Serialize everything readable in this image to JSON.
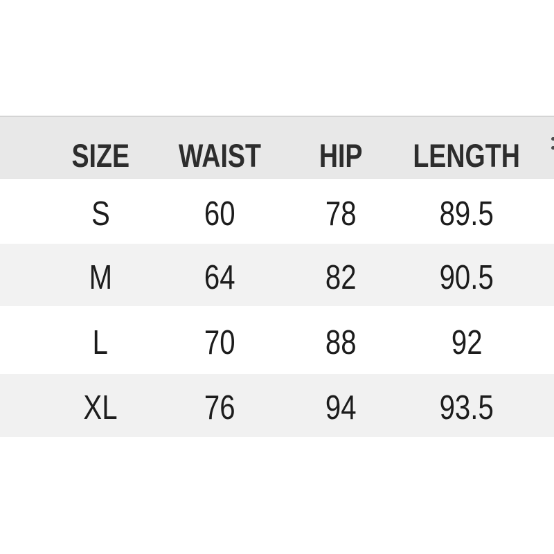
{
  "chart_data": {
    "type": "table",
    "title": "",
    "columns": [
      "SIZE",
      "WAIST",
      "HIP",
      "LENGTH"
    ],
    "rows": [
      [
        "S",
        "60",
        "78",
        "89.5"
      ],
      [
        "M",
        "64",
        "82",
        "90.5"
      ],
      [
        "L",
        "70",
        "88",
        "92"
      ],
      [
        "XL",
        "76",
        "94",
        "93.5"
      ]
    ],
    "layout": {
      "header_bg": "#e8e8e8",
      "row_alt_bg": "#f2f2f2",
      "row_bg": "#ffffff",
      "border_color": "#d4d4d4",
      "header_text_color": "#2d2d2d",
      "body_text_color": "#1c1c1c",
      "page_bg": "#ffffff"
    },
    "edge_artifact_color": "#4c4c4c"
  }
}
